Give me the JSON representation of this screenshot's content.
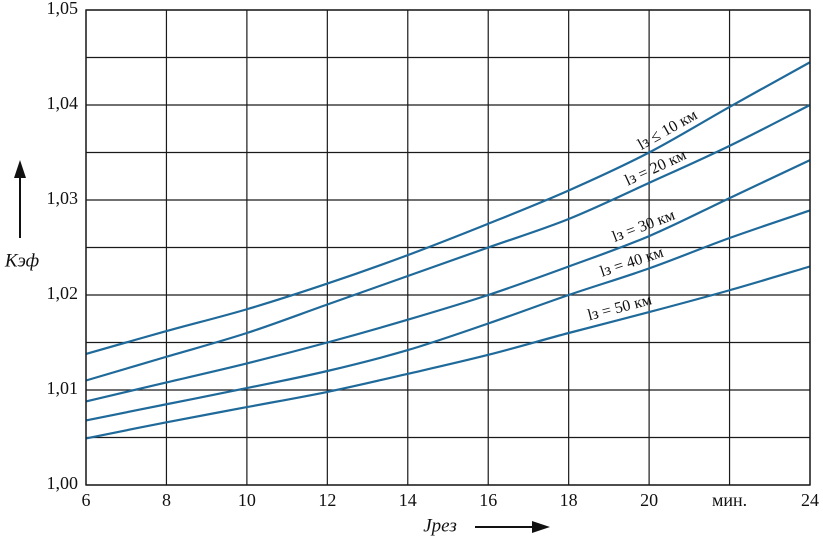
{
  "chart_data": {
    "type": "line",
    "y_label": "Kэф",
    "x_label": "Jрез",
    "xlim": [
      6,
      24
    ],
    "xticks": [
      6,
      8,
      10,
      12,
      14,
      16,
      18,
      20,
      {
        "value": 22,
        "label": "мин."
      },
      24
    ],
    "ylim": [
      1.0,
      1.05
    ],
    "yticks": [
      {
        "value": 1.0,
        "label": "1,00"
      },
      {
        "value": 1.01,
        "label": "1,01"
      },
      {
        "value": 1.02,
        "label": "1,02"
      },
      {
        "value": 1.03,
        "label": "1,03"
      },
      {
        "value": 1.04,
        "label": "1,04"
      },
      {
        "value": 1.05,
        "label": "1,05"
      }
    ],
    "minor_yticks": [
      1.005,
      1.015,
      1.025,
      1.035,
      1.045
    ],
    "grid": true,
    "x": [
      6,
      8,
      10,
      12,
      14,
      16,
      18,
      20,
      22,
      24
    ],
    "series": [
      {
        "name": "lз ≤ 10 км",
        "color": "#1f6a9a",
        "values": [
          1.0138,
          1.0162,
          1.0185,
          1.0212,
          1.0242,
          1.0275,
          1.031,
          1.035,
          1.0398,
          1.0445
        ]
      },
      {
        "name": "lз = 20 км",
        "color": "#1f6a9a",
        "values": [
          1.011,
          1.0135,
          1.016,
          1.019,
          1.022,
          1.025,
          1.028,
          1.0318,
          1.0357,
          1.04
        ]
      },
      {
        "name": "lз = 30 км",
        "color": "#1f6a9a",
        "values": [
          1.0088,
          1.0108,
          1.0128,
          1.015,
          1.0174,
          1.02,
          1.023,
          1.0262,
          1.0302,
          1.0342
        ]
      },
      {
        "name": "lз = 40 км",
        "color": "#1f6a9a",
        "values": [
          1.0068,
          1.0085,
          1.0102,
          1.012,
          1.0142,
          1.017,
          1.02,
          1.0228,
          1.026,
          1.0289
        ]
      },
      {
        "name": "lз = 50 км",
        "color": "#1f6a9a",
        "values": [
          1.0049,
          1.0066,
          1.0082,
          1.0098,
          1.0117,
          1.0137,
          1.016,
          1.0182,
          1.0205,
          1.023
        ]
      }
    ]
  }
}
